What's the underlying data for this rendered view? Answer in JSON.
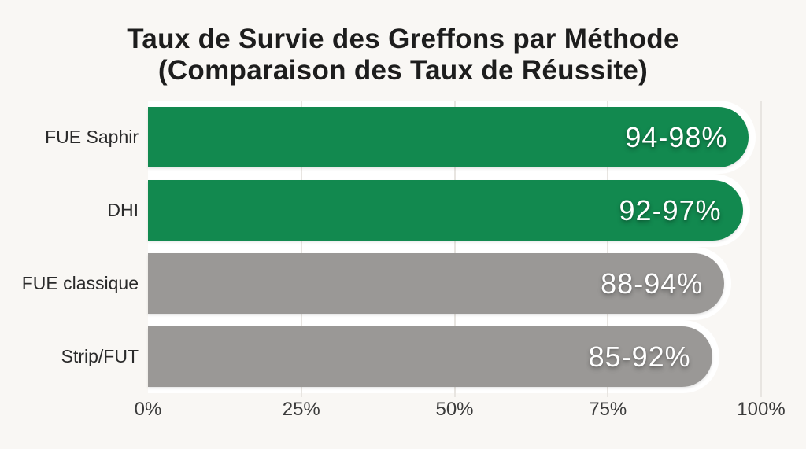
{
  "chart_data": {
    "type": "bar",
    "orientation": "horizontal",
    "title": "Taux de Survie des Greffons par Méthode",
    "subtitle": "(Comparaison des Taux de Réussite)",
    "categories": [
      "FUE Saphir",
      "DHI",
      "FUE classique",
      "Strip/FUT"
    ],
    "series": [
      {
        "name": "Taux de survie des greffons",
        "value_labels": [
          "94-98%",
          "92-97%",
          "88-94%",
          "85-92%"
        ],
        "range_low": [
          94,
          92,
          88,
          85
        ],
        "range_high": [
          98,
          97,
          94,
          92
        ]
      }
    ],
    "bar_lengths_pct": [
      98,
      97,
      94,
      92
    ],
    "bar_colors": [
      "#12894f",
      "#12894f",
      "#9a9896",
      "#9a9896"
    ],
    "x_ticks": [
      {
        "label": "0%",
        "value": 0
      },
      {
        "label": "25%",
        "value": 25
      },
      {
        "label": "50%",
        "value": 50
      },
      {
        "label": "75%",
        "value": 75
      },
      {
        "label": "100%",
        "value": 100
      }
    ],
    "xlim": [
      0,
      100
    ],
    "gridline_values": [
      25,
      50,
      75,
      100
    ],
    "grid": "vertical",
    "legend": "none",
    "colors": {
      "background": "#f9f7f4",
      "row_gap": "#ffffff",
      "gridline": "#e8e5e1",
      "highlight_bar": "#12894f",
      "muted_bar": "#9a9896",
      "value_text": "#ffffff",
      "category_text": "#2a2a2a",
      "tick_text": "#3b3b3b",
      "title_text": "#1d1d1d"
    }
  }
}
